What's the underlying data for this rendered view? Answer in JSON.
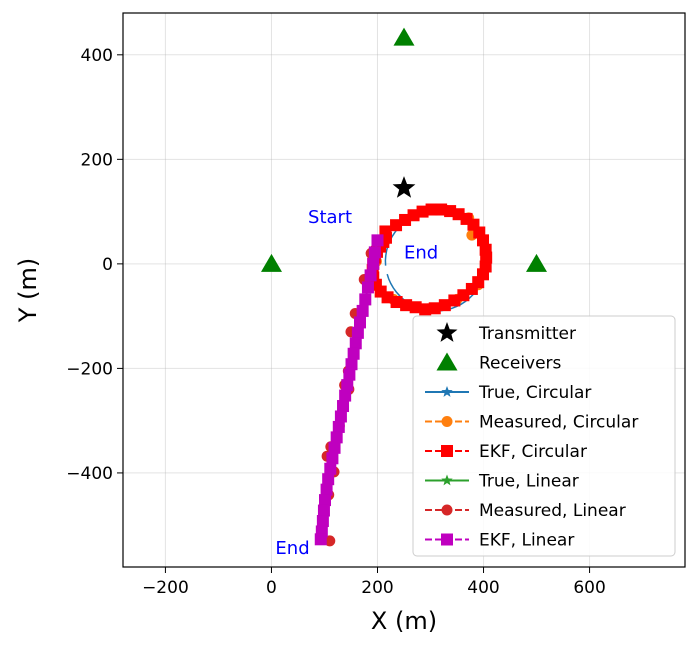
{
  "chart_data": {
    "type": "scatter",
    "title": "",
    "xlabel": "X (m)",
    "ylabel": "Y (m)",
    "xlim": [
      -280,
      780
    ],
    "ylim": [
      -580,
      480
    ],
    "xticks": [
      -200,
      0,
      200,
      400,
      600
    ],
    "yticks": [
      400,
      200,
      0,
      -200,
      -400
    ],
    "xtick_labels": [
      "−200",
      "0",
      "200",
      "400",
      "600"
    ],
    "ytick_labels": [
      "400",
      "200",
      "0",
      "−200",
      "−400"
    ],
    "grid": true,
    "legend_position": "lower-right",
    "markers": {
      "transmitter": {
        "name": "Transmitter",
        "x": 250,
        "y": 145,
        "color": "#000000"
      },
      "receivers": {
        "name": "Receivers",
        "points": [
          [
            0,
            0
          ],
          [
            250,
            433
          ],
          [
            500,
            0
          ]
        ],
        "color": "#008000"
      }
    },
    "circular": {
      "center": [
        310,
        5
      ],
      "radius": 95,
      "start_angle_deg": 185,
      "end_angle_deg": -165,
      "true_name": "True, Circular",
      "measured_name": "Measured, Circular",
      "ekf_name": "EKF, Circular",
      "true_color": "#1f77b4",
      "measured_color": "#ff7f0e",
      "ekf_color": "#ff0000",
      "ekf_points": [
        [
          215,
          62
        ],
        [
          235,
          74
        ],
        [
          252,
          84
        ],
        [
          268,
          93
        ],
        [
          285,
          100
        ],
        [
          302,
          104
        ],
        [
          320,
          104
        ],
        [
          337,
          101
        ],
        [
          353,
          95
        ],
        [
          368,
          86
        ],
        [
          381,
          75
        ],
        [
          392,
          60
        ],
        [
          399,
          45
        ],
        [
          404,
          27
        ],
        [
          405,
          12
        ],
        [
          404,
          -5
        ],
        [
          399,
          -20
        ],
        [
          390,
          -35
        ],
        [
          378,
          -48
        ],
        [
          362,
          -60
        ],
        [
          345,
          -70
        ],
        [
          327,
          -79
        ],
        [
          308,
          -85
        ],
        [
          290,
          -87
        ],
        [
          272,
          -83
        ],
        [
          254,
          -79
        ],
        [
          236,
          -73
        ],
        [
          219,
          -64
        ],
        [
          206,
          -53
        ],
        [
          197,
          -40
        ],
        [
          192,
          -26
        ],
        [
          191,
          -12
        ],
        [
          192,
          0
        ],
        [
          195,
          12
        ],
        [
          199,
          23
        ],
        [
          205,
          33
        ],
        [
          211,
          42
        ],
        [
          216,
          50
        ]
      ],
      "measured_points": [
        [
          330,
          102
        ],
        [
          372,
          88
        ],
        [
          378,
          55
        ],
        [
          405,
          22
        ],
        [
          390,
          -40
        ],
        [
          350,
          -68
        ],
        [
          295,
          -86
        ],
        [
          230,
          -68
        ],
        [
          195,
          -35
        ],
        [
          198,
          5
        ]
      ]
    },
    "linear": {
      "true_name": "True, Linear",
      "measured_name": "Measured, Linear",
      "ekf_name": "EKF, Linear",
      "true_color": "#2ca02c",
      "measured_color": "#d62728",
      "ekf_color": "#bf00bf",
      "ekf_points": [
        [
          200,
          45
        ],
        [
          195,
          22
        ],
        [
          192,
          0
        ],
        [
          187,
          -22
        ],
        [
          182,
          -45
        ],
        [
          177,
          -68
        ],
        [
          172,
          -90
        ],
        [
          167,
          -112
        ],
        [
          163,
          -132
        ],
        [
          159,
          -152
        ],
        [
          155,
          -172
        ],
        [
          151,
          -192
        ],
        [
          147,
          -212
        ],
        [
          143,
          -232
        ],
        [
          139,
          -252
        ],
        [
          135,
          -272
        ],
        [
          131,
          -292
        ],
        [
          127,
          -312
        ],
        [
          123,
          -332
        ],
        [
          119,
          -352
        ],
        [
          115,
          -372
        ],
        [
          111,
          -392
        ],
        [
          107,
          -412
        ],
        [
          104,
          -432
        ],
        [
          101,
          -452
        ],
        [
          99,
          -472
        ],
        [
          97,
          -492
        ],
        [
          95,
          -512
        ],
        [
          93,
          -527
        ]
      ],
      "measured_points": [
        [
          188,
          20
        ],
        [
          175,
          -30
        ],
        [
          158,
          -95
        ],
        [
          150,
          -130
        ],
        [
          145,
          -205
        ],
        [
          138,
          -232
        ],
        [
          146,
          -240
        ],
        [
          128,
          -310
        ],
        [
          112,
          -350
        ],
        [
          105,
          -368
        ],
        [
          118,
          -398
        ],
        [
          108,
          -442
        ],
        [
          110,
          -530
        ]
      ]
    },
    "annotations": [
      {
        "text": "Start",
        "x": 152,
        "y": 78,
        "anchor": "end"
      },
      {
        "text": "End",
        "x": 250,
        "y": 10,
        "anchor": "start"
      },
      {
        "text": "End",
        "x": 72,
        "y": -555,
        "anchor": "end"
      }
    ],
    "legend_entries": [
      {
        "label": "Transmitter",
        "marker": "star",
        "line": "none",
        "color": "#000000"
      },
      {
        "label": "Receivers",
        "marker": "triangle",
        "line": "none",
        "color": "#008000"
      },
      {
        "label": "True, Circular",
        "marker": "star",
        "line": "solid",
        "color": "#1f77b4"
      },
      {
        "label": "Measured, Circular",
        "marker": "circle",
        "line": "dashed",
        "color": "#ff7f0e"
      },
      {
        "label": "EKF, Circular",
        "marker": "square",
        "line": "dashed",
        "color": "#ff0000"
      },
      {
        "label": "True, Linear",
        "marker": "star",
        "line": "solid",
        "color": "#2ca02c"
      },
      {
        "label": "Measured, Linear",
        "marker": "circle",
        "line": "dashed",
        "color": "#d62728"
      },
      {
        "label": "EKF, Linear",
        "marker": "square",
        "line": "dashed",
        "color": "#bf00bf"
      }
    ]
  }
}
